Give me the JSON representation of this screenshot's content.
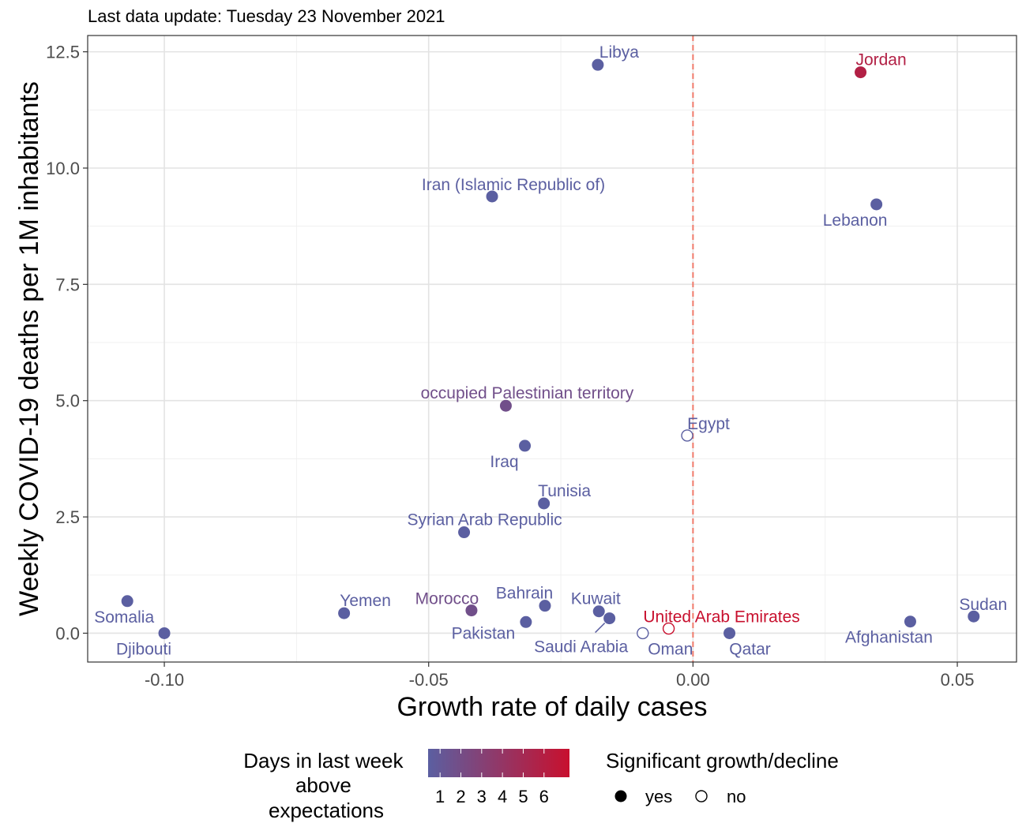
{
  "chart_data": {
    "type": "scatter",
    "subtitle": "Last data update: Tuesday 23 November 2021",
    "xlabel": "Growth rate of daily cases",
    "ylabel": "Weekly COVID-19 deaths per 1M inhabitants",
    "xlim": [
      -0.1145,
      0.0612
    ],
    "ylim": [
      -0.62,
      12.85
    ],
    "x_ticks": [
      {
        "value": -0.1,
        "label": "-0.10"
      },
      {
        "value": -0.05,
        "label": "-0.05"
      },
      {
        "value": 0.0,
        "label": "0.00"
      },
      {
        "value": 0.05,
        "label": "0.05"
      }
    ],
    "y_ticks": [
      {
        "value": 0.0,
        "label": "0.0"
      },
      {
        "value": 2.5,
        "label": "2.5"
      },
      {
        "value": 5.0,
        "label": "5.0"
      },
      {
        "value": 7.5,
        "label": "7.5"
      },
      {
        "value": 10.0,
        "label": "10.0"
      },
      {
        "value": 12.5,
        "label": "12.5"
      }
    ],
    "reference_line": {
      "x": 0.0,
      "style": "dashed",
      "color": "#f07a6a"
    },
    "grid": true,
    "points": [
      {
        "name": "Libya",
        "x": -0.018,
        "y": 12.22,
        "days": 1,
        "significant": true,
        "label_pos": "above"
      },
      {
        "name": "Jordan",
        "x": 0.0317,
        "y": 12.06,
        "days": 5,
        "significant": true,
        "label_pos": "above"
      },
      {
        "name": "Iran (Islamic Republic of)",
        "x": -0.038,
        "y": 9.39,
        "days": 1,
        "significant": true,
        "label_pos": "above"
      },
      {
        "name": "Lebanon",
        "x": 0.0347,
        "y": 9.22,
        "days": 1,
        "significant": true,
        "label_pos": "below"
      },
      {
        "name": "occupied Palestinian territory",
        "x": -0.0354,
        "y": 4.89,
        "days": 2,
        "significant": true,
        "label_pos": "above"
      },
      {
        "name": "Egypt",
        "x": -0.0011,
        "y": 4.25,
        "days": 1,
        "significant": false,
        "label_pos": "above"
      },
      {
        "name": "Iraq",
        "x": -0.0318,
        "y": 4.03,
        "days": 1,
        "significant": true,
        "label_pos": "below"
      },
      {
        "name": "Tunisia",
        "x": -0.0282,
        "y": 2.79,
        "days": 1,
        "significant": true,
        "label_pos": "above"
      },
      {
        "name": "Syrian Arab Republic",
        "x": -0.0433,
        "y": 2.17,
        "days": 1,
        "significant": true,
        "label_pos": "above"
      },
      {
        "name": "Somalia",
        "x": -0.107,
        "y": 0.69,
        "days": 1,
        "significant": true,
        "label_pos": "below"
      },
      {
        "name": "Djibouti",
        "x": -0.1,
        "y": 0.0,
        "days": 1,
        "significant": true,
        "label_pos": "below"
      },
      {
        "name": "Yemen",
        "x": -0.066,
        "y": 0.43,
        "days": 1,
        "significant": true,
        "label_pos": "above"
      },
      {
        "name": "Morocco",
        "x": -0.0419,
        "y": 0.49,
        "days": 2,
        "significant": true,
        "label_pos": "above"
      },
      {
        "name": "Bahrain",
        "x": -0.028,
        "y": 0.59,
        "days": 1,
        "significant": true,
        "label_pos": "above"
      },
      {
        "name": "Pakistan",
        "x": -0.0316,
        "y": 0.24,
        "days": 1,
        "significant": true,
        "label_pos": "below"
      },
      {
        "name": "Kuwait",
        "x": -0.0178,
        "y": 0.47,
        "days": 1,
        "significant": true,
        "label_pos": "above"
      },
      {
        "name": "Saudi Arabia",
        "x": -0.0158,
        "y": 0.32,
        "days": 1,
        "significant": true,
        "label_pos": "below"
      },
      {
        "name": "United Arab Emirates",
        "x": -0.0046,
        "y": 0.1,
        "days": 6,
        "significant": false,
        "label_pos": "above"
      },
      {
        "name": "Oman",
        "x": -0.0095,
        "y": 0.0,
        "days": 1,
        "significant": false,
        "label_pos": "below"
      },
      {
        "name": "Qatar",
        "x": 0.0069,
        "y": 0.0,
        "days": 1,
        "significant": true,
        "label_pos": "below"
      },
      {
        "name": "Afghanistan",
        "x": 0.0411,
        "y": 0.25,
        "days": 1,
        "significant": true,
        "label_pos": "below"
      },
      {
        "name": "Sudan",
        "x": 0.0531,
        "y": 0.36,
        "days": 1,
        "significant": true,
        "label_pos": "above"
      }
    ],
    "legend": {
      "position": "bottom",
      "color_title": "Days in last week above expectations",
      "color_title_lines": [
        "Days in last week",
        "above",
        "expectations"
      ],
      "color_ticks": [
        "1",
        "2",
        "3",
        "4",
        "5",
        "6"
      ],
      "color_low": "#5b5fa1",
      "color_high": "#c8102e",
      "shape_title": "Significant growth/decline",
      "shape_items": [
        {
          "label": "yes",
          "filled": true
        },
        {
          "label": "no",
          "filled": false
        }
      ]
    }
  }
}
